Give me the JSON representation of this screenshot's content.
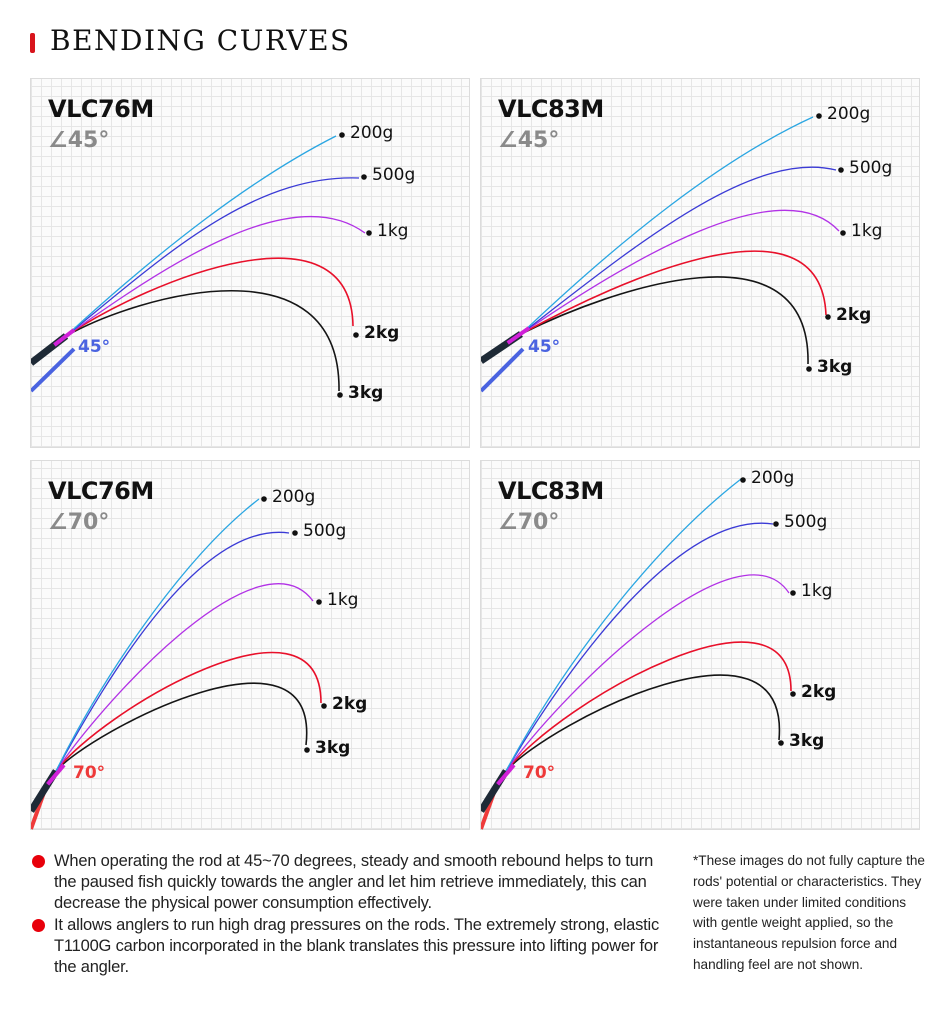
{
  "header": {
    "title": "BENDING CURVES",
    "accent_color": "#d8141c"
  },
  "series_colors": {
    "200g": "#2aa6e2",
    "500g": "#3b3bd6",
    "1kg": "#b232e6",
    "2kg": "#e8102a",
    "3kg": "#151515"
  },
  "panels": [
    {
      "model": "VLC76M",
      "angle": "∠45°",
      "marker": "45°",
      "marker_color": "#4a63e0",
      "loads": [
        "200g",
        "500g",
        "1kg",
        "2kg",
        "3kg"
      ]
    },
    {
      "model": "VLC83M",
      "angle": "∠45°",
      "marker": "45°",
      "marker_color": "#4a63e0",
      "loads": [
        "200g",
        "500g",
        "1kg",
        "2kg",
        "3kg"
      ]
    },
    {
      "model": "VLC76M",
      "angle": "∠70°",
      "marker": "70°",
      "marker_color": "#ee3a3a",
      "loads": [
        "200g",
        "500g",
        "1kg",
        "2kg",
        "3kg"
      ]
    },
    {
      "model": "VLC83M",
      "angle": "∠70°",
      "marker": "70°",
      "marker_color": "#ee3a3a",
      "loads": [
        "200g",
        "500g",
        "1kg",
        "2kg",
        "3kg"
      ]
    }
  ],
  "bullets": [
    "When operating the rod at 45~70 degrees, steady and smooth rebound helps to turn the paused fish quickly towards the angler and let him retrieve immediately, this can decrease the physical power consumption effectively.",
    "It allows anglers to run high drag pressures on the rods. The extremely strong, elastic T1100G carbon incorporated in the blank translates this pressure into lifting power for the angler."
  ],
  "note": "*These images do not fully capture the rods' potential or characteristics. They were taken under limited conditions with gentle weight applied, so the instantaneous repulsion force and handling feel are not shown."
}
